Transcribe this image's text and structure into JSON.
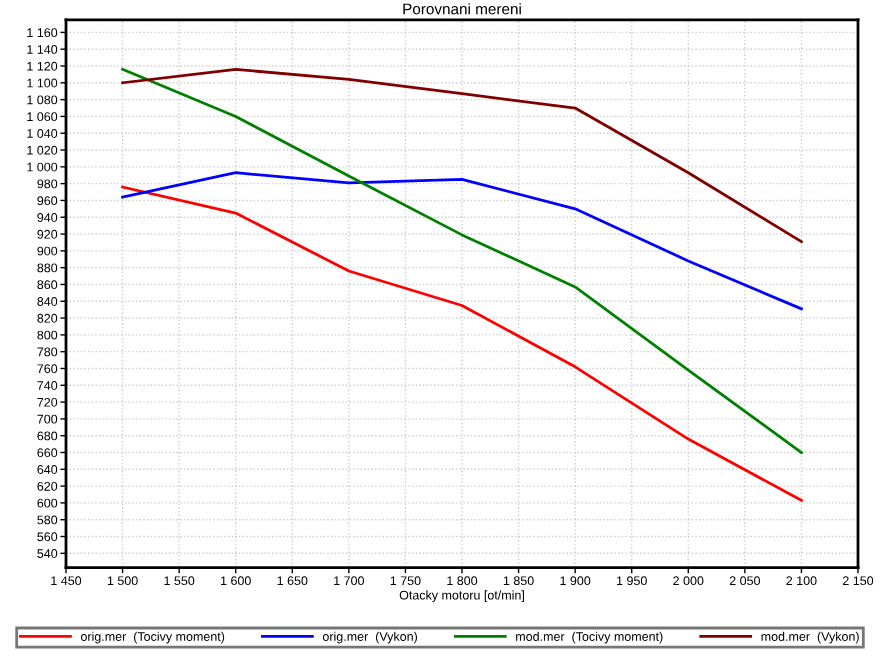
{
  "chart_data": {
    "type": "line",
    "title": "Porovnani mereni",
    "xlabel": "Otacky motoru [ot/min]",
    "x": [
      1500,
      1600,
      1700,
      1800,
      1900,
      2000,
      2100
    ],
    "series": [
      {
        "name": "orig.mer  (Tocivy moment)",
        "color": "#ff0000",
        "values": [
          976,
          945,
          876,
          835,
          762,
          676,
          603
        ]
      },
      {
        "name": "orig.mer  (Vykon)",
        "color": "#0000ff",
        "values": [
          964,
          993,
          981,
          985,
          950,
          888,
          831
        ]
      },
      {
        "name": "mod.mer  (Tocivy moment)",
        "color": "#008000",
        "values": [
          1116,
          1060,
          989,
          919,
          857,
          758,
          660
        ]
      },
      {
        "name": "mod.mer  (Vykon)",
        "color": "#800000",
        "values": [
          1100,
          1116,
          1104,
          1087,
          1070,
          993,
          911
        ]
      }
    ],
    "xlim": [
      1450,
      2150
    ],
    "xticks": [
      {
        "value": 1450,
        "label": "1 450"
      },
      {
        "value": 1500,
        "label": "1 500"
      },
      {
        "value": 1550,
        "label": "1 550"
      },
      {
        "value": 1600,
        "label": "1 600"
      },
      {
        "value": 1650,
        "label": "1 650"
      },
      {
        "value": 1700,
        "label": "1 700"
      },
      {
        "value": 1750,
        "label": "1 750"
      },
      {
        "value": 1800,
        "label": "1 800"
      },
      {
        "value": 1850,
        "label": "1 850"
      },
      {
        "value": 1900,
        "label": "1 900"
      },
      {
        "value": 1950,
        "label": "1 950"
      },
      {
        "value": 2000,
        "label": "2 000"
      },
      {
        "value": 2050,
        "label": "2 050"
      },
      {
        "value": 2100,
        "label": "2 100"
      },
      {
        "value": 2150,
        "label": "2 150"
      }
    ],
    "ylim": [
      523,
      1175
    ],
    "yticks": [
      {
        "value": 540,
        "label": "540"
      },
      {
        "value": 560,
        "label": "560"
      },
      {
        "value": 580,
        "label": "580"
      },
      {
        "value": 600,
        "label": "600"
      },
      {
        "value": 620,
        "label": "620"
      },
      {
        "value": 640,
        "label": "640"
      },
      {
        "value": 660,
        "label": "660"
      },
      {
        "value": 680,
        "label": "680"
      },
      {
        "value": 700,
        "label": "700"
      },
      {
        "value": 720,
        "label": "720"
      },
      {
        "value": 740,
        "label": "740"
      },
      {
        "value": 760,
        "label": "760"
      },
      {
        "value": 780,
        "label": "780"
      },
      {
        "value": 800,
        "label": "800"
      },
      {
        "value": 820,
        "label": "820"
      },
      {
        "value": 840,
        "label": "840"
      },
      {
        "value": 860,
        "label": "860"
      },
      {
        "value": 880,
        "label": "880"
      },
      {
        "value": 900,
        "label": "900"
      },
      {
        "value": 920,
        "label": "920"
      },
      {
        "value": 940,
        "label": "940"
      },
      {
        "value": 960,
        "label": "960"
      },
      {
        "value": 980,
        "label": "980"
      },
      {
        "value": 1000,
        "label": "1 000"
      },
      {
        "value": 1020,
        "label": "1 020"
      },
      {
        "value": 1040,
        "label": "1 040"
      },
      {
        "value": 1060,
        "label": "1 060"
      },
      {
        "value": 1080,
        "label": "1 080"
      },
      {
        "value": 1100,
        "label": "1 100"
      },
      {
        "value": 1120,
        "label": "1 120"
      },
      {
        "value": 1140,
        "label": "1 140"
      },
      {
        "value": 1160,
        "label": "1 160"
      }
    ],
    "grid": true,
    "legend": "bottom",
    "marker": "none",
    "line_style": "solid"
  }
}
